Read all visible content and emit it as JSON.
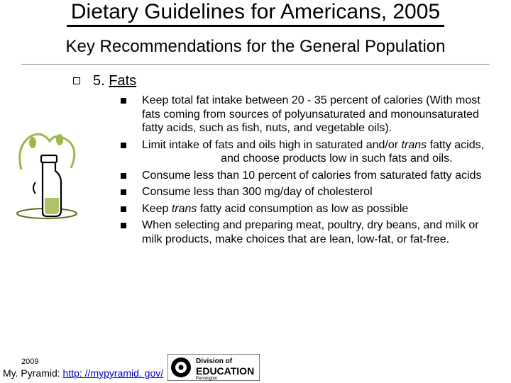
{
  "title": "Dietary Guidelines for Americans, 2005",
  "subtitle": "Key Recommendations for the General Population",
  "section": {
    "number": "5.",
    "heading": "Fats"
  },
  "bullets": [
    {
      "html": "Keep total fat intake between 20 - 35 percent of calories (With most fats coming from sources of polyunsaturated and monounsaturated fatty acids, such as fish, nuts, and vegetable oils)."
    },
    {
      "html": "Limit intake of fats and oils high in saturated and/or <i>trans</i> fatty acids, &nbsp;&nbsp;&nbsp;&nbsp;&nbsp;&nbsp;&nbsp;&nbsp;&nbsp;&nbsp;&nbsp;&nbsp;&nbsp;&nbsp;&nbsp;&nbsp;&nbsp;&nbsp;&nbsp;&nbsp;&nbsp;&nbsp;&nbsp;&nbsp; and choose products low in such fats and oils."
    },
    {
      "html": "Consume less than 10 percent of calories from saturated fatty acids"
    },
    {
      "html": "Consume less than 300 mg/day of cholesterol"
    },
    {
      "html": "Keep <i>trans</i> fatty acid consumption as low as possible"
    },
    {
      "html": "When selecting and preparing meat, poultry, dry beans, and milk or milk products, make choices that are lean, low-fat, or fat-free."
    }
  ],
  "footer": {
    "year": "2009",
    "label": "My. Pyramid: ",
    "link_text": "http: //mypyramid. gov/",
    "link_href": "http://mypyramid.gov/"
  },
  "colors": {
    "olive_dark": "#5a6b1f",
    "olive_light": "#9fb84a",
    "black": "#000000"
  },
  "logo": {
    "top": "Division of",
    "bottom": "EDUCATION",
    "sub": "Pennington"
  }
}
